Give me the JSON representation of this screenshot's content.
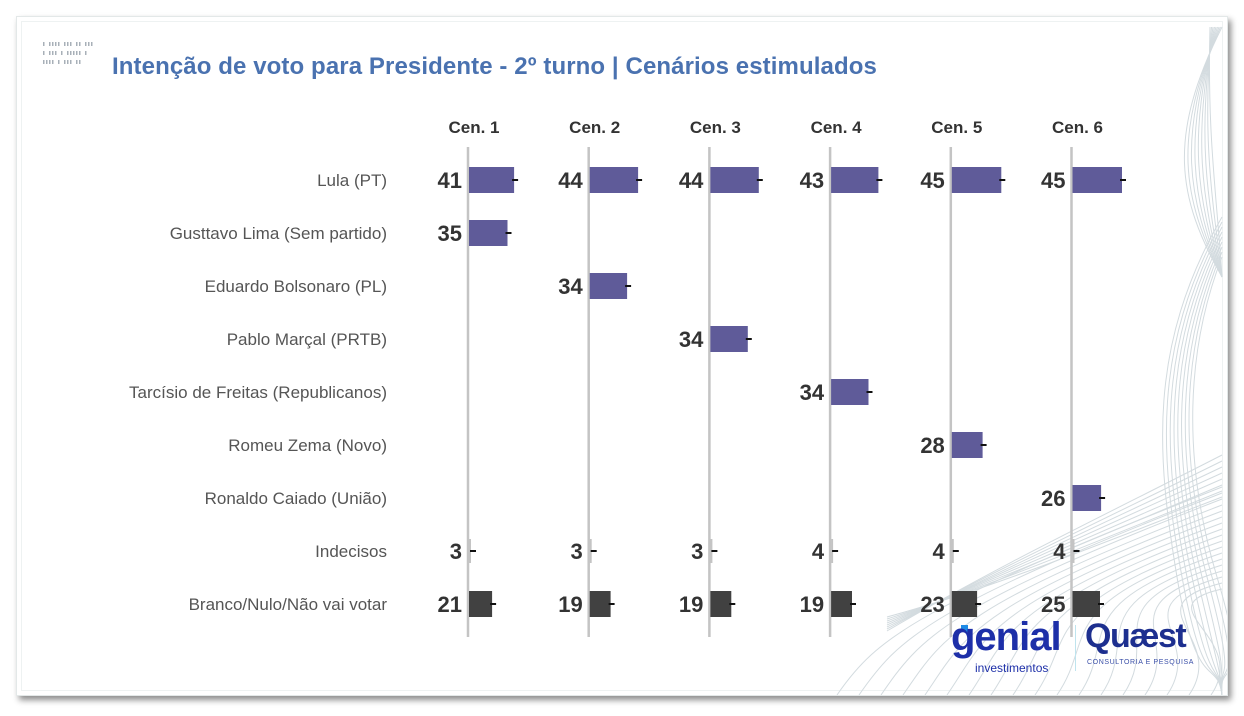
{
  "slide": {
    "title": "Intenção de voto para Presidente - 2º turno | Cenários estimulados"
  },
  "colors": {
    "title": "#4a72b0",
    "candidate_bar": "#5f5b99",
    "other_bar": "#414141",
    "axis": "#c4c4c4",
    "label_text": "#555555",
    "value_text": "#333333"
  },
  "logos": {
    "genial": "genial",
    "genial_sub": "investimentos",
    "quaest": "Quæst",
    "quaest_sub": "CONSULTORIA E PESQUISA"
  },
  "chart_data": {
    "type": "bar",
    "orientation": "horizontal",
    "layout": "small-multiples",
    "title": "Intenção de voto para Presidente - 2º turno | Cenários estimulados",
    "xlabel": "",
    "ylabel": "",
    "grid": false,
    "legend": "none",
    "unit": "%",
    "xlim": [
      0,
      50
    ],
    "categories": [
      "Lula (PT)",
      "Gusttavo Lima (Sem partido)",
      "Eduardo Bolsonaro (PL)",
      "Pablo Marçal (PRTB)",
      "Tarcísio de Freitas (Republicanos)",
      "Romeu Zema (Novo)",
      "Ronaldo Caiado (União)",
      "Indecisos",
      "Branco/Nulo/Não vai votar"
    ],
    "category_kind": [
      "candidate",
      "candidate",
      "candidate",
      "candidate",
      "candidate",
      "candidate",
      "candidate",
      "other",
      "other"
    ],
    "series": [
      {
        "name": "Cen. 1",
        "values": [
          41,
          35,
          null,
          null,
          null,
          null,
          null,
          3,
          21
        ]
      },
      {
        "name": "Cen. 2",
        "values": [
          44,
          null,
          34,
          null,
          null,
          null,
          null,
          3,
          19
        ]
      },
      {
        "name": "Cen. 3",
        "values": [
          44,
          null,
          null,
          34,
          null,
          null,
          null,
          3,
          19
        ]
      },
      {
        "name": "Cen. 4",
        "values": [
          43,
          null,
          null,
          null,
          34,
          null,
          null,
          4,
          19
        ]
      },
      {
        "name": "Cen. 5",
        "values": [
          45,
          null,
          null,
          null,
          null,
          28,
          null,
          4,
          23
        ]
      },
      {
        "name": "Cen. 6",
        "values": [
          45,
          null,
          null,
          null,
          null,
          null,
          26,
          4,
          25
        ]
      }
    ]
  }
}
